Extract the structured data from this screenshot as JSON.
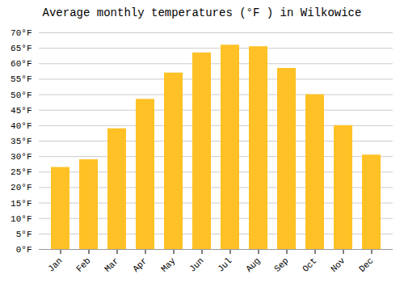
{
  "chart_data": {
    "type": "bar",
    "title": "Average monthly temperatures (°F ) in Wilkowice",
    "categories": [
      "Jan",
      "Feb",
      "Mar",
      "Apr",
      "May",
      "Jun",
      "Jul",
      "Aug",
      "Sep",
      "Oct",
      "Nov",
      "Dec"
    ],
    "values": [
      26.5,
      29.0,
      39.0,
      48.5,
      57.0,
      63.5,
      66.0,
      65.5,
      58.5,
      50.0,
      40.0,
      30.5
    ],
    "color": "#FFC125",
    "ylim": [
      0,
      70
    ],
    "yticks": [
      {
        "value": 0,
        "label": "0°F"
      },
      {
        "value": 5,
        "label": "5°F"
      },
      {
        "value": 10,
        "label": "10°F"
      },
      {
        "value": 15,
        "label": "15°F"
      },
      {
        "value": 20,
        "label": "20°F"
      },
      {
        "value": 25,
        "label": "25°F"
      },
      {
        "value": 30,
        "label": "30°F"
      },
      {
        "value": 35,
        "label": "35°F"
      },
      {
        "value": 40,
        "label": "40°F"
      },
      {
        "value": 45,
        "label": "45°F"
      },
      {
        "value": 50,
        "label": "50°F"
      },
      {
        "value": 55,
        "label": "55°F"
      },
      {
        "value": 60,
        "label": "60°F"
      },
      {
        "value": 65,
        "label": "65°F"
      },
      {
        "value": 70,
        "label": "70°F"
      }
    ],
    "grid": true
  }
}
